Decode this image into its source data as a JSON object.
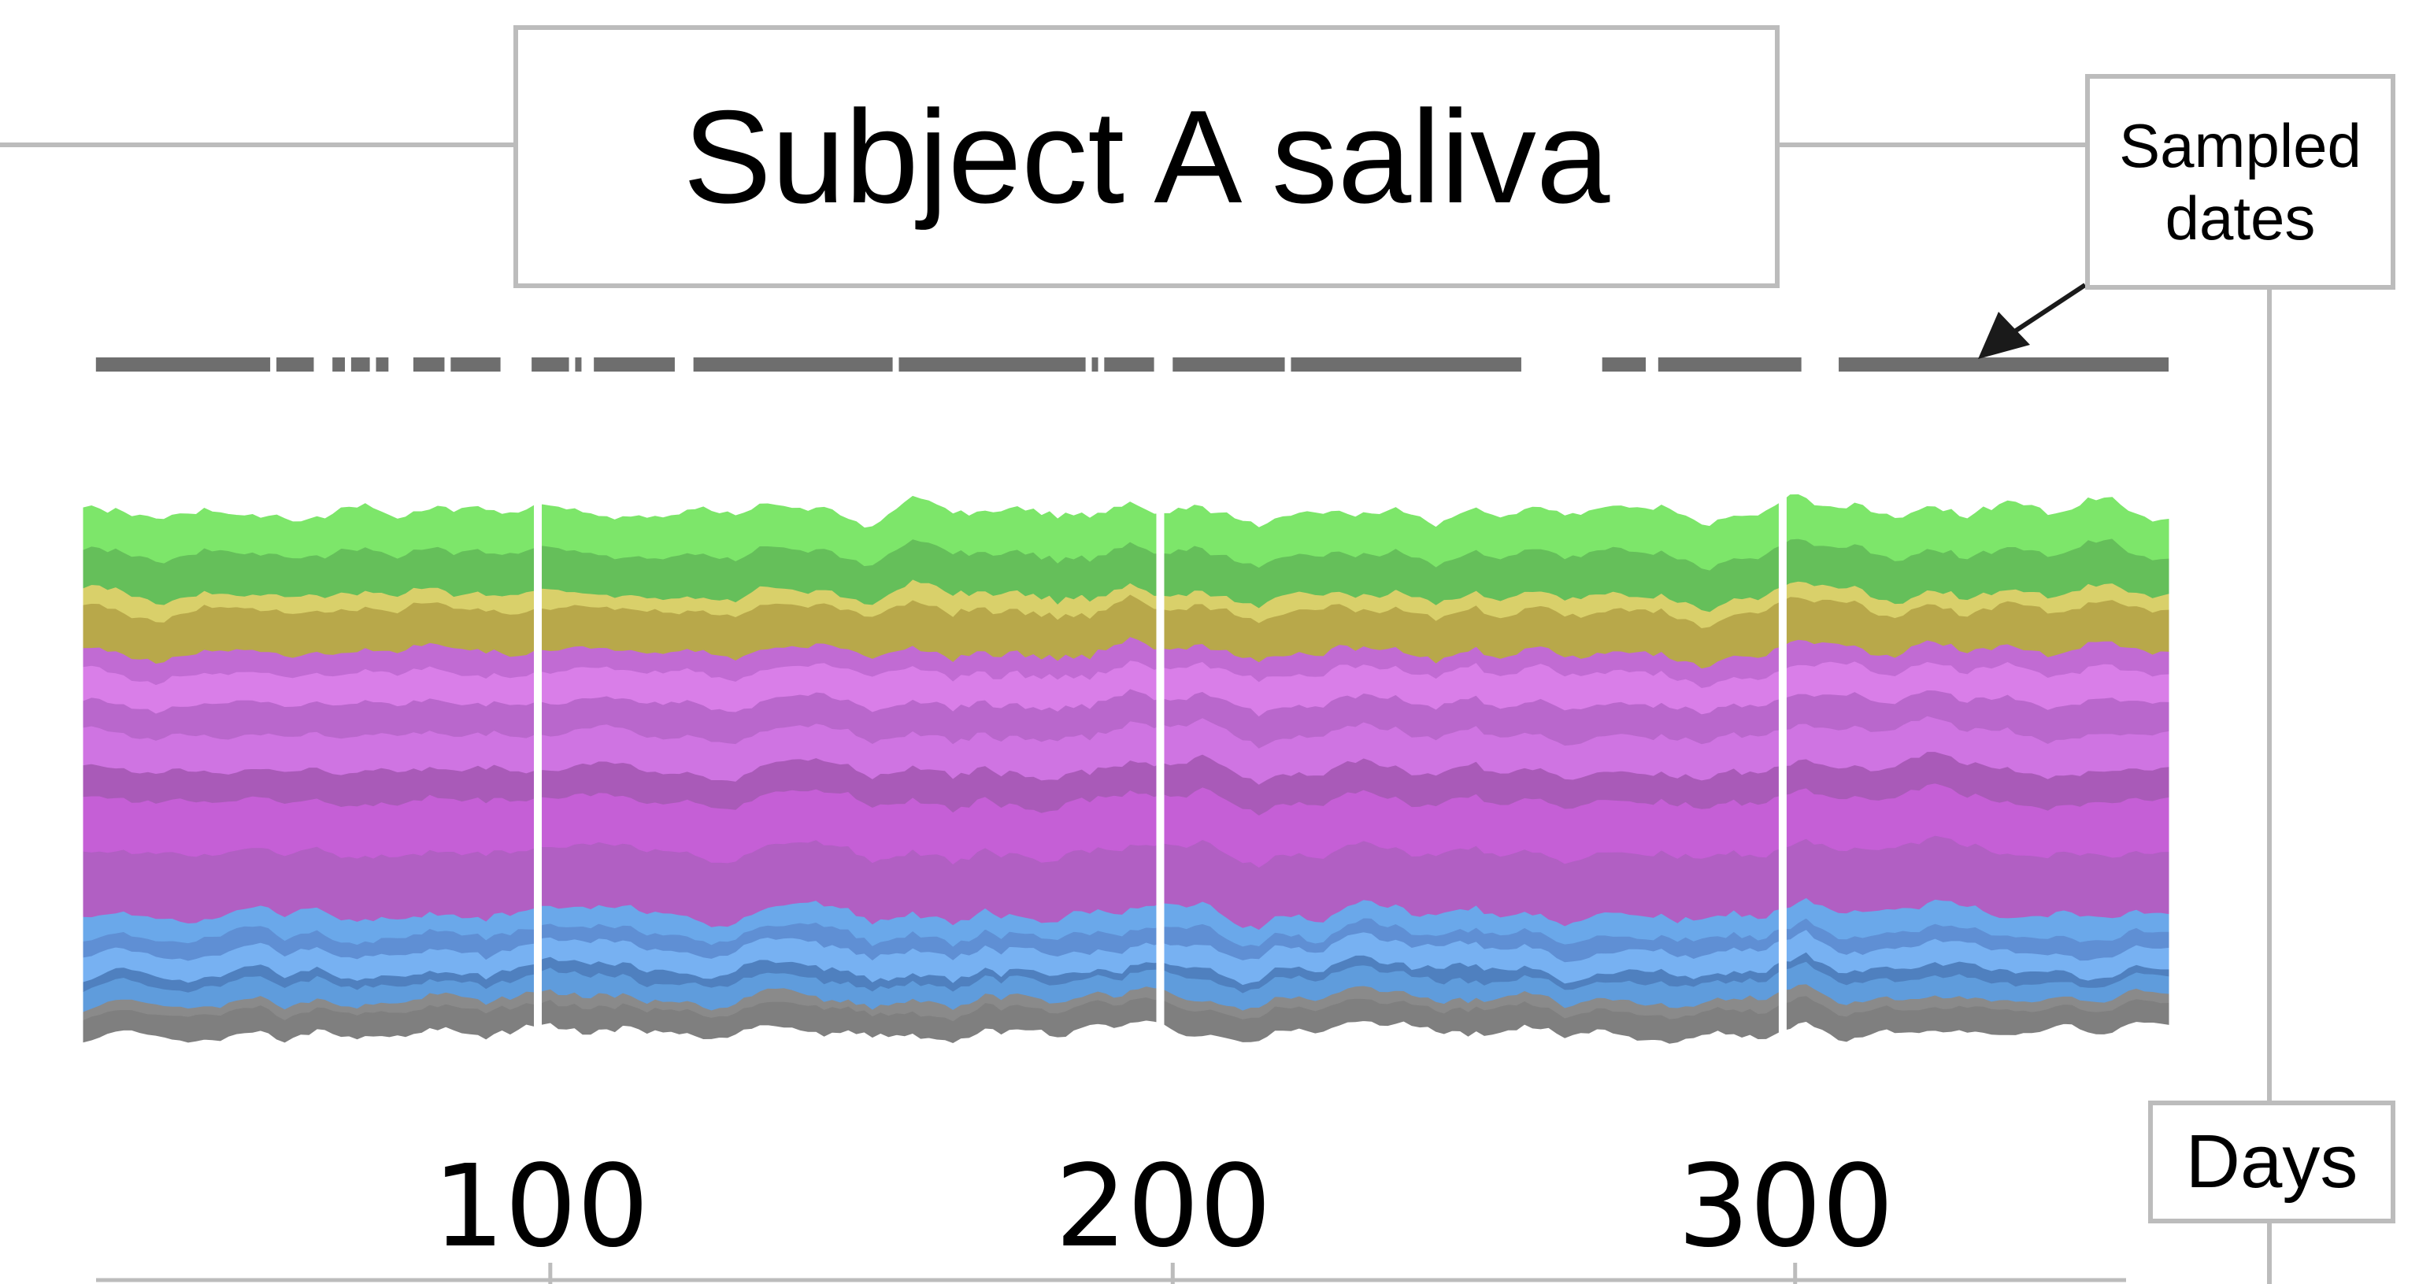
{
  "chart_data": {
    "type": "area",
    "stacked": true,
    "normalized": true,
    "title": "Subject A saliva",
    "xlabel": "Days",
    "annotation": "Sampled dates",
    "x_ticks": [
      100,
      200,
      300
    ],
    "xlim": [
      25,
      360
    ],
    "ylim": [
      0,
      1
    ],
    "grid": false,
    "legend": "none",
    "gaps_days": [
      98,
      198,
      298
    ],
    "sampled_date_segments": [
      [
        27,
        55
      ],
      [
        56,
        62
      ],
      [
        65,
        67
      ],
      [
        68,
        71
      ],
      [
        72,
        74
      ],
      [
        78,
        83
      ],
      [
        84,
        92
      ],
      [
        97,
        103
      ],
      [
        104,
        105
      ],
      [
        107,
        120
      ],
      [
        123,
        155
      ],
      [
        156,
        186
      ],
      [
        187,
        188
      ],
      [
        189,
        197
      ],
      [
        200,
        218
      ],
      [
        219,
        256
      ],
      [
        269,
        276
      ],
      [
        278,
        301
      ],
      [
        307,
        360
      ]
    ],
    "groups": [
      {
        "name": "",
        "color": "#5ed14a",
        "share": 0.15
      },
      {
        "name": "",
        "color": "#c2b74a",
        "share": 0.11
      },
      {
        "name": "",
        "color": "#c55fd6",
        "share": 0.51
      },
      {
        "name": "",
        "color": "#6fa0e6",
        "share": 0.16
      },
      {
        "name": "",
        "color": "#7f7f7f",
        "share": 0.07
      }
    ],
    "series_colors": [
      "#7f7f7f",
      "#8a8a8a",
      "#5f9cdc",
      "#4f80bf",
      "#77b1f2",
      "#5f8fd4",
      "#6aa8ea",
      "#b15fc3",
      "#c55fd6",
      "#a95ab8",
      "#cf74e2",
      "#b967cc",
      "#d97ee8",
      "#c16bd3",
      "#b8a84a",
      "#d9d06a",
      "#65bf5a",
      "#7de66a"
    ],
    "series_shares": [
      0.045,
      0.02,
      0.035,
      0.02,
      0.04,
      0.03,
      0.04,
      0.12,
      0.1,
      0.06,
      0.07,
      0.06,
      0.06,
      0.04,
      0.08,
      0.03,
      0.08,
      0.08
    ]
  }
}
